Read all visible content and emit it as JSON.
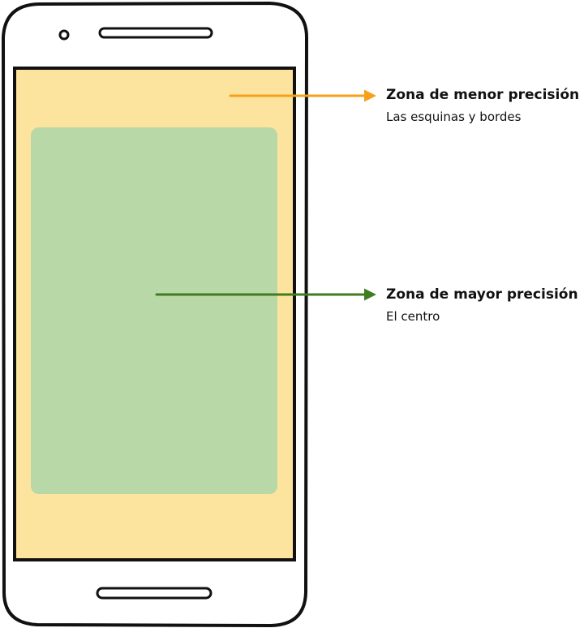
{
  "colors": {
    "outline": "#111111",
    "low_precision_zone": "#fde49e",
    "high_precision_zone": "#b8d8a8",
    "low_arrow": "#f7a11a",
    "high_arrow": "#3f7d20"
  },
  "zones": {
    "low": {
      "title": "Zona de menor precisión",
      "description": "Las esquinas y bordes"
    },
    "high": {
      "title": "Zona de mayor precisión",
      "description": "El centro"
    }
  }
}
